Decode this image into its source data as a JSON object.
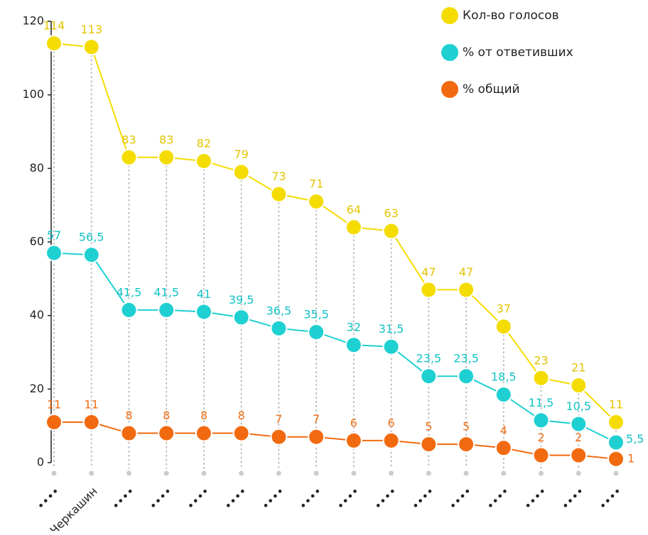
{
  "chart_data": {
    "type": "line",
    "categories": [
      "••••",
      "Черкашин",
      "••••",
      "••••",
      "••••",
      "••••",
      "••••",
      "••••",
      "••••",
      "••••",
      "••••",
      "••••",
      "••••",
      "••••",
      "••••",
      "••••"
    ],
    "ylim": [
      0,
      120
    ],
    "yticks": [
      0,
      20,
      40,
      60,
      80,
      100,
      120
    ],
    "legend": "upper right",
    "series": [
      {
        "name": "Кол-во голосов",
        "color": "#f5dc00",
        "label_color": "#e3c400",
        "values": [
          114,
          113,
          83,
          83,
          82,
          79,
          73,
          71,
          64,
          63,
          47,
          47,
          37,
          23,
          21,
          11
        ]
      },
      {
        "name": "% от ответивших",
        "color": "#1fd0d2",
        "label_color": "#13c3c6",
        "values": [
          57,
          56.5,
          41.5,
          41.5,
          41,
          39.5,
          36.5,
          35.5,
          32,
          31.5,
          23.5,
          23.5,
          18.5,
          11.5,
          10.5,
          5.5
        ],
        "value_labels": [
          "57",
          "56,5",
          "41,5",
          "41,5",
          "41",
          "39,5",
          "36,5",
          "35,5",
          "32",
          "31,5",
          "23,5",
          "23,5",
          "18,5",
          "11,5",
          "10,5",
          "5,5"
        ]
      },
      {
        "name": "% общий",
        "color": "#f26a10",
        "label_color": "#f07018",
        "values": [
          11,
          11,
          8,
          8,
          8,
          8,
          7,
          7,
          6,
          6,
          5,
          5,
          4,
          2,
          2,
          1
        ]
      }
    ]
  }
}
